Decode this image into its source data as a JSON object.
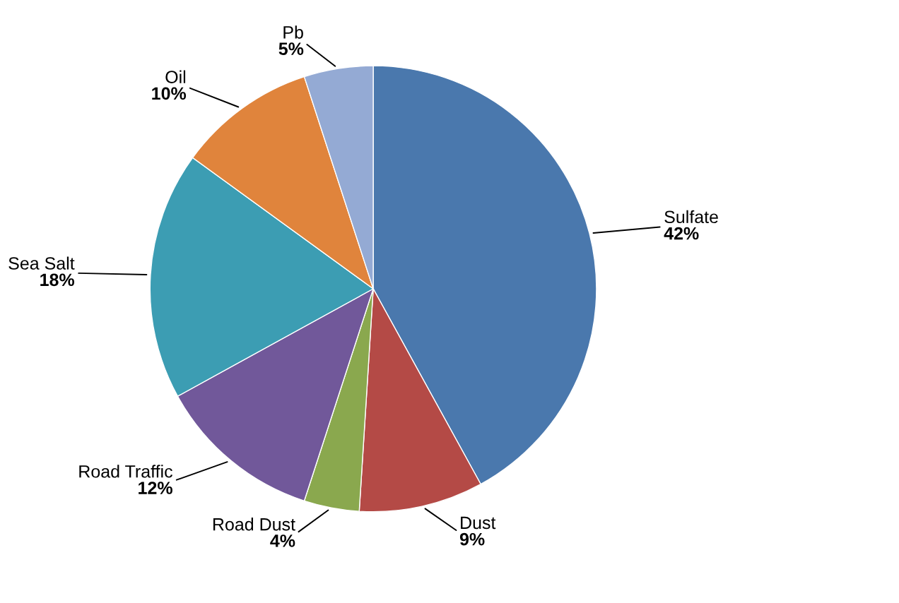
{
  "chart_data": {
    "type": "pie",
    "categories": [
      "Sulfate",
      "Dust",
      "Road Dust",
      "Road Traffic",
      "Sea Salt",
      "Oil",
      "Pb"
    ],
    "values": [
      42,
      9,
      4,
      12,
      18,
      10,
      5
    ],
    "colors": [
      "#4a78ad",
      "#b44a46",
      "#8aa84e",
      "#71589a",
      "#3c9db3",
      "#e0843c",
      "#94aad4"
    ],
    "value_labels": [
      "42%",
      "9%",
      "4%",
      "12%",
      "18%",
      "10%",
      "5%"
    ],
    "legend": false
  }
}
